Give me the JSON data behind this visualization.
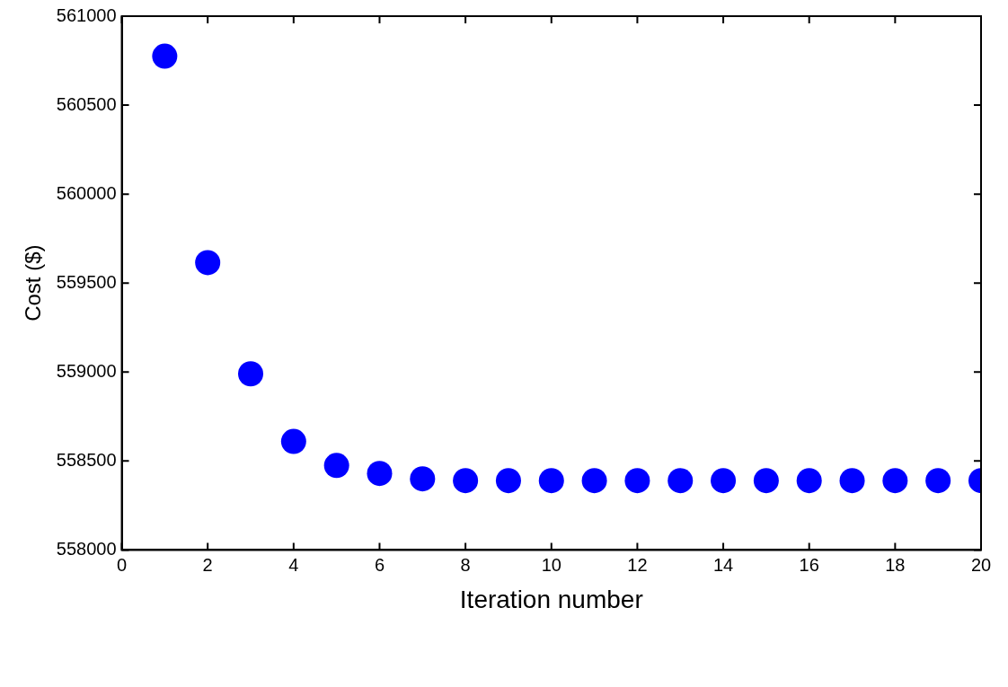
{
  "chart_data": {
    "type": "scatter",
    "xlabel": "Iteration number",
    "ylabel": "Cost ($)",
    "x": [
      1,
      2,
      3,
      4,
      5,
      6,
      7,
      8,
      9,
      10,
      11,
      12,
      13,
      14,
      15,
      16,
      17,
      18,
      19,
      20
    ],
    "series": [
      {
        "color": "#0000ff",
        "values": [
          560775,
          559615,
          558990,
          558610,
          558475,
          558430,
          558400,
          558390,
          558390,
          558390,
          558390,
          558390,
          558390,
          558390,
          558390,
          558390,
          558390,
          558390,
          558390,
          558390
        ]
      }
    ],
    "xlim": [
      0,
      20
    ],
    "xticks": [
      0,
      2,
      4,
      6,
      8,
      10,
      12,
      14,
      16,
      18,
      20
    ],
    "ylim": [
      558000,
      561000
    ],
    "yticks": [
      558000,
      558500,
      559000,
      559500,
      560000,
      560500,
      561000
    ],
    "grid": false,
    "legend": false,
    "marker": "circle"
  }
}
